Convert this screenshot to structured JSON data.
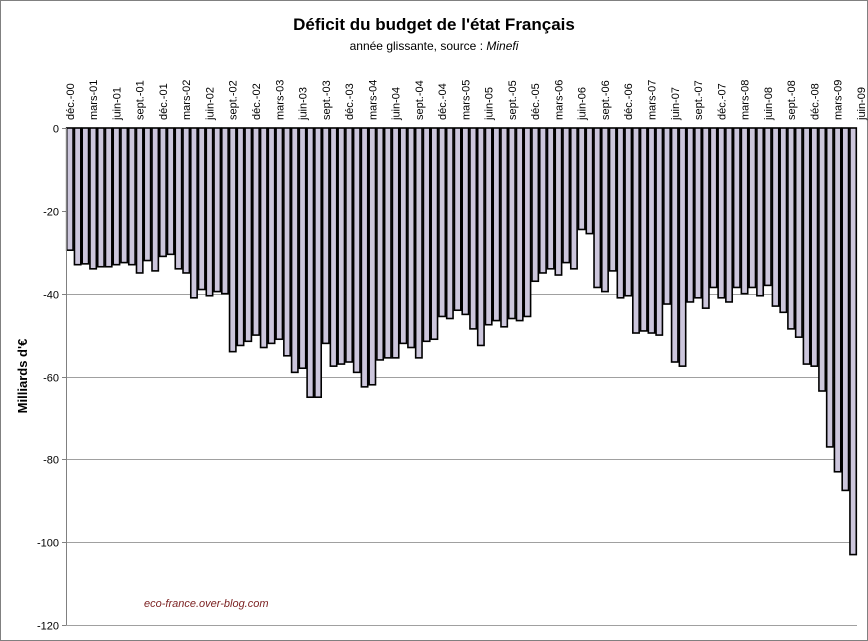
{
  "chart_data": {
    "type": "bar",
    "title": "Déficit du budget de l'état Français",
    "subtitle_prefix": "année glissante, source : ",
    "subtitle_source": "Minefi",
    "ylabel": "Milliards d'€",
    "xlabel": "",
    "ylim": [
      -120,
      0
    ],
    "yticks": [
      0,
      -20,
      -40,
      -60,
      -80,
      -100,
      -120
    ],
    "grid": true,
    "legend": "none",
    "watermark": "eco-france.over-blog.com",
    "bar_fill": "#ccc6dc",
    "bar_stroke": "#000000",
    "x_tick_labels": [
      "déc.-00",
      "mars-01",
      "juin-01",
      "sept.-01",
      "déc.-01",
      "mars-02",
      "juin-02",
      "sept.-02",
      "déc.-02",
      "mars-03",
      "juin-03",
      "sept.-03",
      "déc.-03",
      "mars-04",
      "juin-04",
      "sept.-04",
      "déc.-04",
      "mars-05",
      "juin-05",
      "sept.-05",
      "déc.-05",
      "mars-06",
      "juin-06",
      "sept.-06",
      "déc.-06",
      "mars-07",
      "juin-07",
      "sept.-07",
      "déc.-07",
      "mars-08",
      "juin-08",
      "sept.-08",
      "déc.-08",
      "mars-09",
      "juin-09"
    ],
    "values": [
      -29.5,
      -33,
      -32.8,
      -34,
      -33.5,
      -33.5,
      -33,
      -32.5,
      -33,
      -35,
      -32,
      -34.5,
      -31,
      -30.5,
      -34,
      -35,
      -41,
      -39,
      -40.5,
      -39.5,
      -40,
      -54,
      -52.5,
      -51.5,
      -50,
      -53,
      -52,
      -51,
      -55,
      -59,
      -58,
      -65,
      -65,
      -52,
      -57.5,
      -57,
      -56.5,
      -59,
      -62.5,
      -62,
      -56,
      -55.5,
      -55.5,
      -52,
      -53,
      -55.5,
      -51.5,
      -51,
      -45.5,
      -46,
      -44,
      -45,
      -48.5,
      -52.5,
      -47.5,
      -46.5,
      -48,
      -46,
      -46.5,
      -45.5,
      -37,
      -35,
      -34,
      -35.5,
      -32.5,
      -34,
      -24.5,
      -25.5,
      -38.5,
      -39.5,
      -34.5,
      -41,
      -40.5,
      -49.5,
      -49,
      -49.5,
      -50,
      -42.5,
      -56.5,
      -57.5,
      -42,
      -41,
      -43.5,
      -38.5,
      -41,
      -42,
      -38.5,
      -40,
      -38.5,
      -40.5,
      -38,
      -43,
      -44.5,
      -48.5,
      -50.5,
      -57,
      -57.5,
      -63.5,
      -77,
      -83,
      -87.5,
      -103
    ]
  }
}
